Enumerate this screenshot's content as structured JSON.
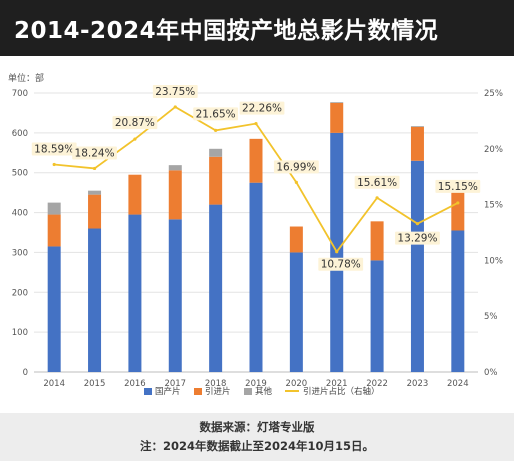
{
  "header": {
    "title": "2014-2024年中国按产地总影片数情况"
  },
  "footer": {
    "source": "数据来源：灯塔专业版",
    "note": "注：2024年数据截止至2024年10月15日。"
  },
  "chart_data": {
    "type": "bar",
    "stacked": true,
    "unit_label": "单位：部",
    "categories": [
      "2014",
      "2015",
      "2016",
      "2017",
      "2018",
      "2019",
      "2020",
      "2021",
      "2022",
      "2023",
      "2024"
    ],
    "series": [
      {
        "name": "国产片",
        "values": [
          315,
          360,
          395,
          383,
          420,
          475,
          300,
          600,
          280,
          530,
          355
        ]
      },
      {
        "name": "引进片",
        "values": [
          80,
          85,
          100,
          123,
          120,
          110,
          65,
          75,
          98,
          85,
          108
        ]
      },
      {
        "name": "其他",
        "values": [
          30,
          10,
          0,
          13,
          20,
          0,
          0,
          2,
          0,
          2,
          0
        ]
      }
    ],
    "line_series": {
      "name": "引进片占比（右轴）",
      "values": [
        18.59,
        18.24,
        20.87,
        23.75,
        21.65,
        22.26,
        16.99,
        10.78,
        15.61,
        13.29,
        15.15
      ],
      "labels": [
        "18.59%",
        "18.24%",
        "20.87%",
        "23.75%",
        "21.65%",
        "22.26%",
        "16.99%",
        "10.78%",
        "15.61%",
        "13.29%",
        "15.15%"
      ]
    },
    "y_left": {
      "lim": [
        0,
        700
      ],
      "ticks": [
        "0",
        "100",
        "200",
        "300",
        "400",
        "500",
        "600",
        "700"
      ]
    },
    "y_right": {
      "lim": [
        0,
        25
      ],
      "ticks": [
        "0%",
        "5%",
        "10%",
        "15%",
        "20%",
        "25%"
      ]
    },
    "grid": true,
    "legend_position": "bottom",
    "colors": {
      "国产片": "#4472c4",
      "引进片": "#ed7d31",
      "其他": "#a5a5a5",
      "line": "#f2c32c",
      "label_bg": "#fdf3d7"
    }
  }
}
